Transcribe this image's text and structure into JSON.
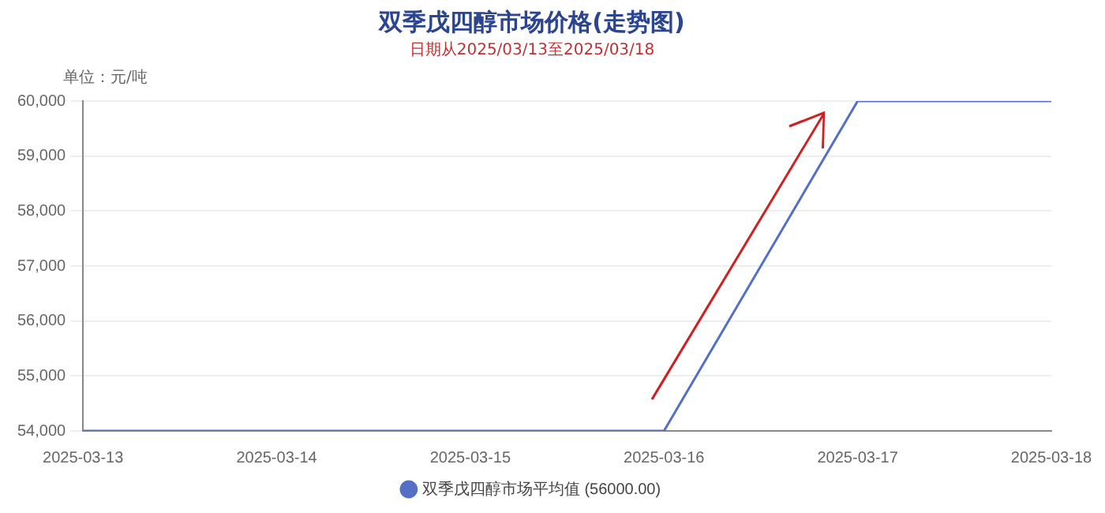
{
  "chart_data": {
    "type": "line",
    "title": "双季戊四醇市场价格(走势图)",
    "subtitle": "日期从2025/03/13至2025/03/18",
    "ylabel": "单位：元/吨",
    "categories": [
      "2025-03-13",
      "2025-03-14",
      "2025-03-15",
      "2025-03-16",
      "2025-03-17",
      "2025-03-18"
    ],
    "series": [
      {
        "name": "双季戊四醇市场平均值 (56000.00)",
        "color": "#5470c6",
        "values": [
          54000,
          54000,
          54000,
          54000,
          60000,
          60000
        ]
      }
    ],
    "ylim": [
      54000,
      60000
    ],
    "yticks": [
      {
        "value": 54000,
        "label": "54,000"
      },
      {
        "value": 55000,
        "label": "55,000"
      },
      {
        "value": 56000,
        "label": "56,000"
      },
      {
        "value": 57000,
        "label": "57,000"
      },
      {
        "value": 58000,
        "label": "58,000"
      },
      {
        "value": 59000,
        "label": "59,000"
      },
      {
        "value": 60000,
        "label": "60,000"
      }
    ],
    "grid": "y",
    "legend": "bottom",
    "marker": "none",
    "line_style": "solid"
  }
}
